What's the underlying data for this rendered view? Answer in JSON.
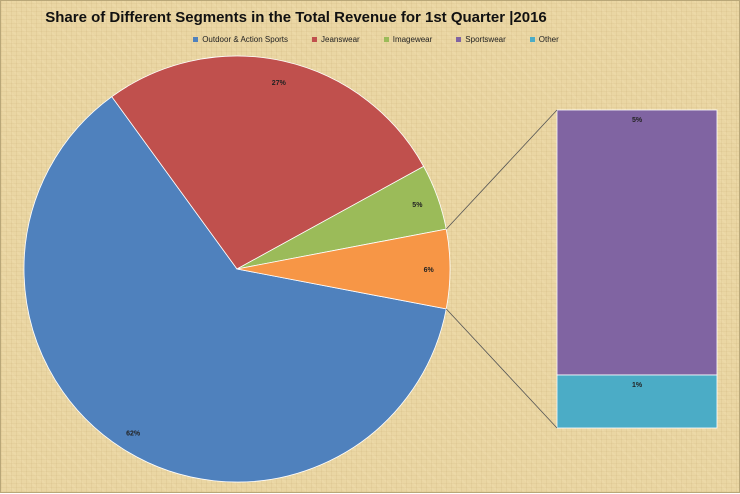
{
  "chart_data": {
    "type": "pie",
    "subtype": "bar-of-pie",
    "title": "Share of Different Segments in the Total Revenue for 1st Quarter |2016",
    "legend_position": "top",
    "legend": [
      {
        "name": "Outdoor & Action Sports",
        "color": "#4f81bd"
      },
      {
        "name": "Jeanswear",
        "color": "#c0504d"
      },
      {
        "name": "Imagewear",
        "color": "#9bbb59"
      },
      {
        "name": "Sportswear",
        "color": "#8064a2"
      },
      {
        "name": "Other",
        "color": "#4bacc6"
      }
    ],
    "pie_slices": [
      {
        "label": "Outdoor & Action Sports",
        "value": 62,
        "display": "62%",
        "color": "#4f81bd"
      },
      {
        "label": "Jeanswear",
        "value": 27,
        "display": "27%",
        "color": "#c0504d"
      },
      {
        "label": "Imagewear",
        "value": 5,
        "display": "5%",
        "color": "#9bbb59"
      },
      {
        "label": "Sportswear + Other (combined)",
        "value": 6,
        "display": "6%",
        "color": "#f79646"
      }
    ],
    "bar_segments": [
      {
        "label": "Sportswear",
        "value": 5,
        "display": "5%",
        "color": "#8064a2"
      },
      {
        "label": "Other",
        "value": 1,
        "display": "1%",
        "color": "#4bacc6"
      }
    ]
  }
}
